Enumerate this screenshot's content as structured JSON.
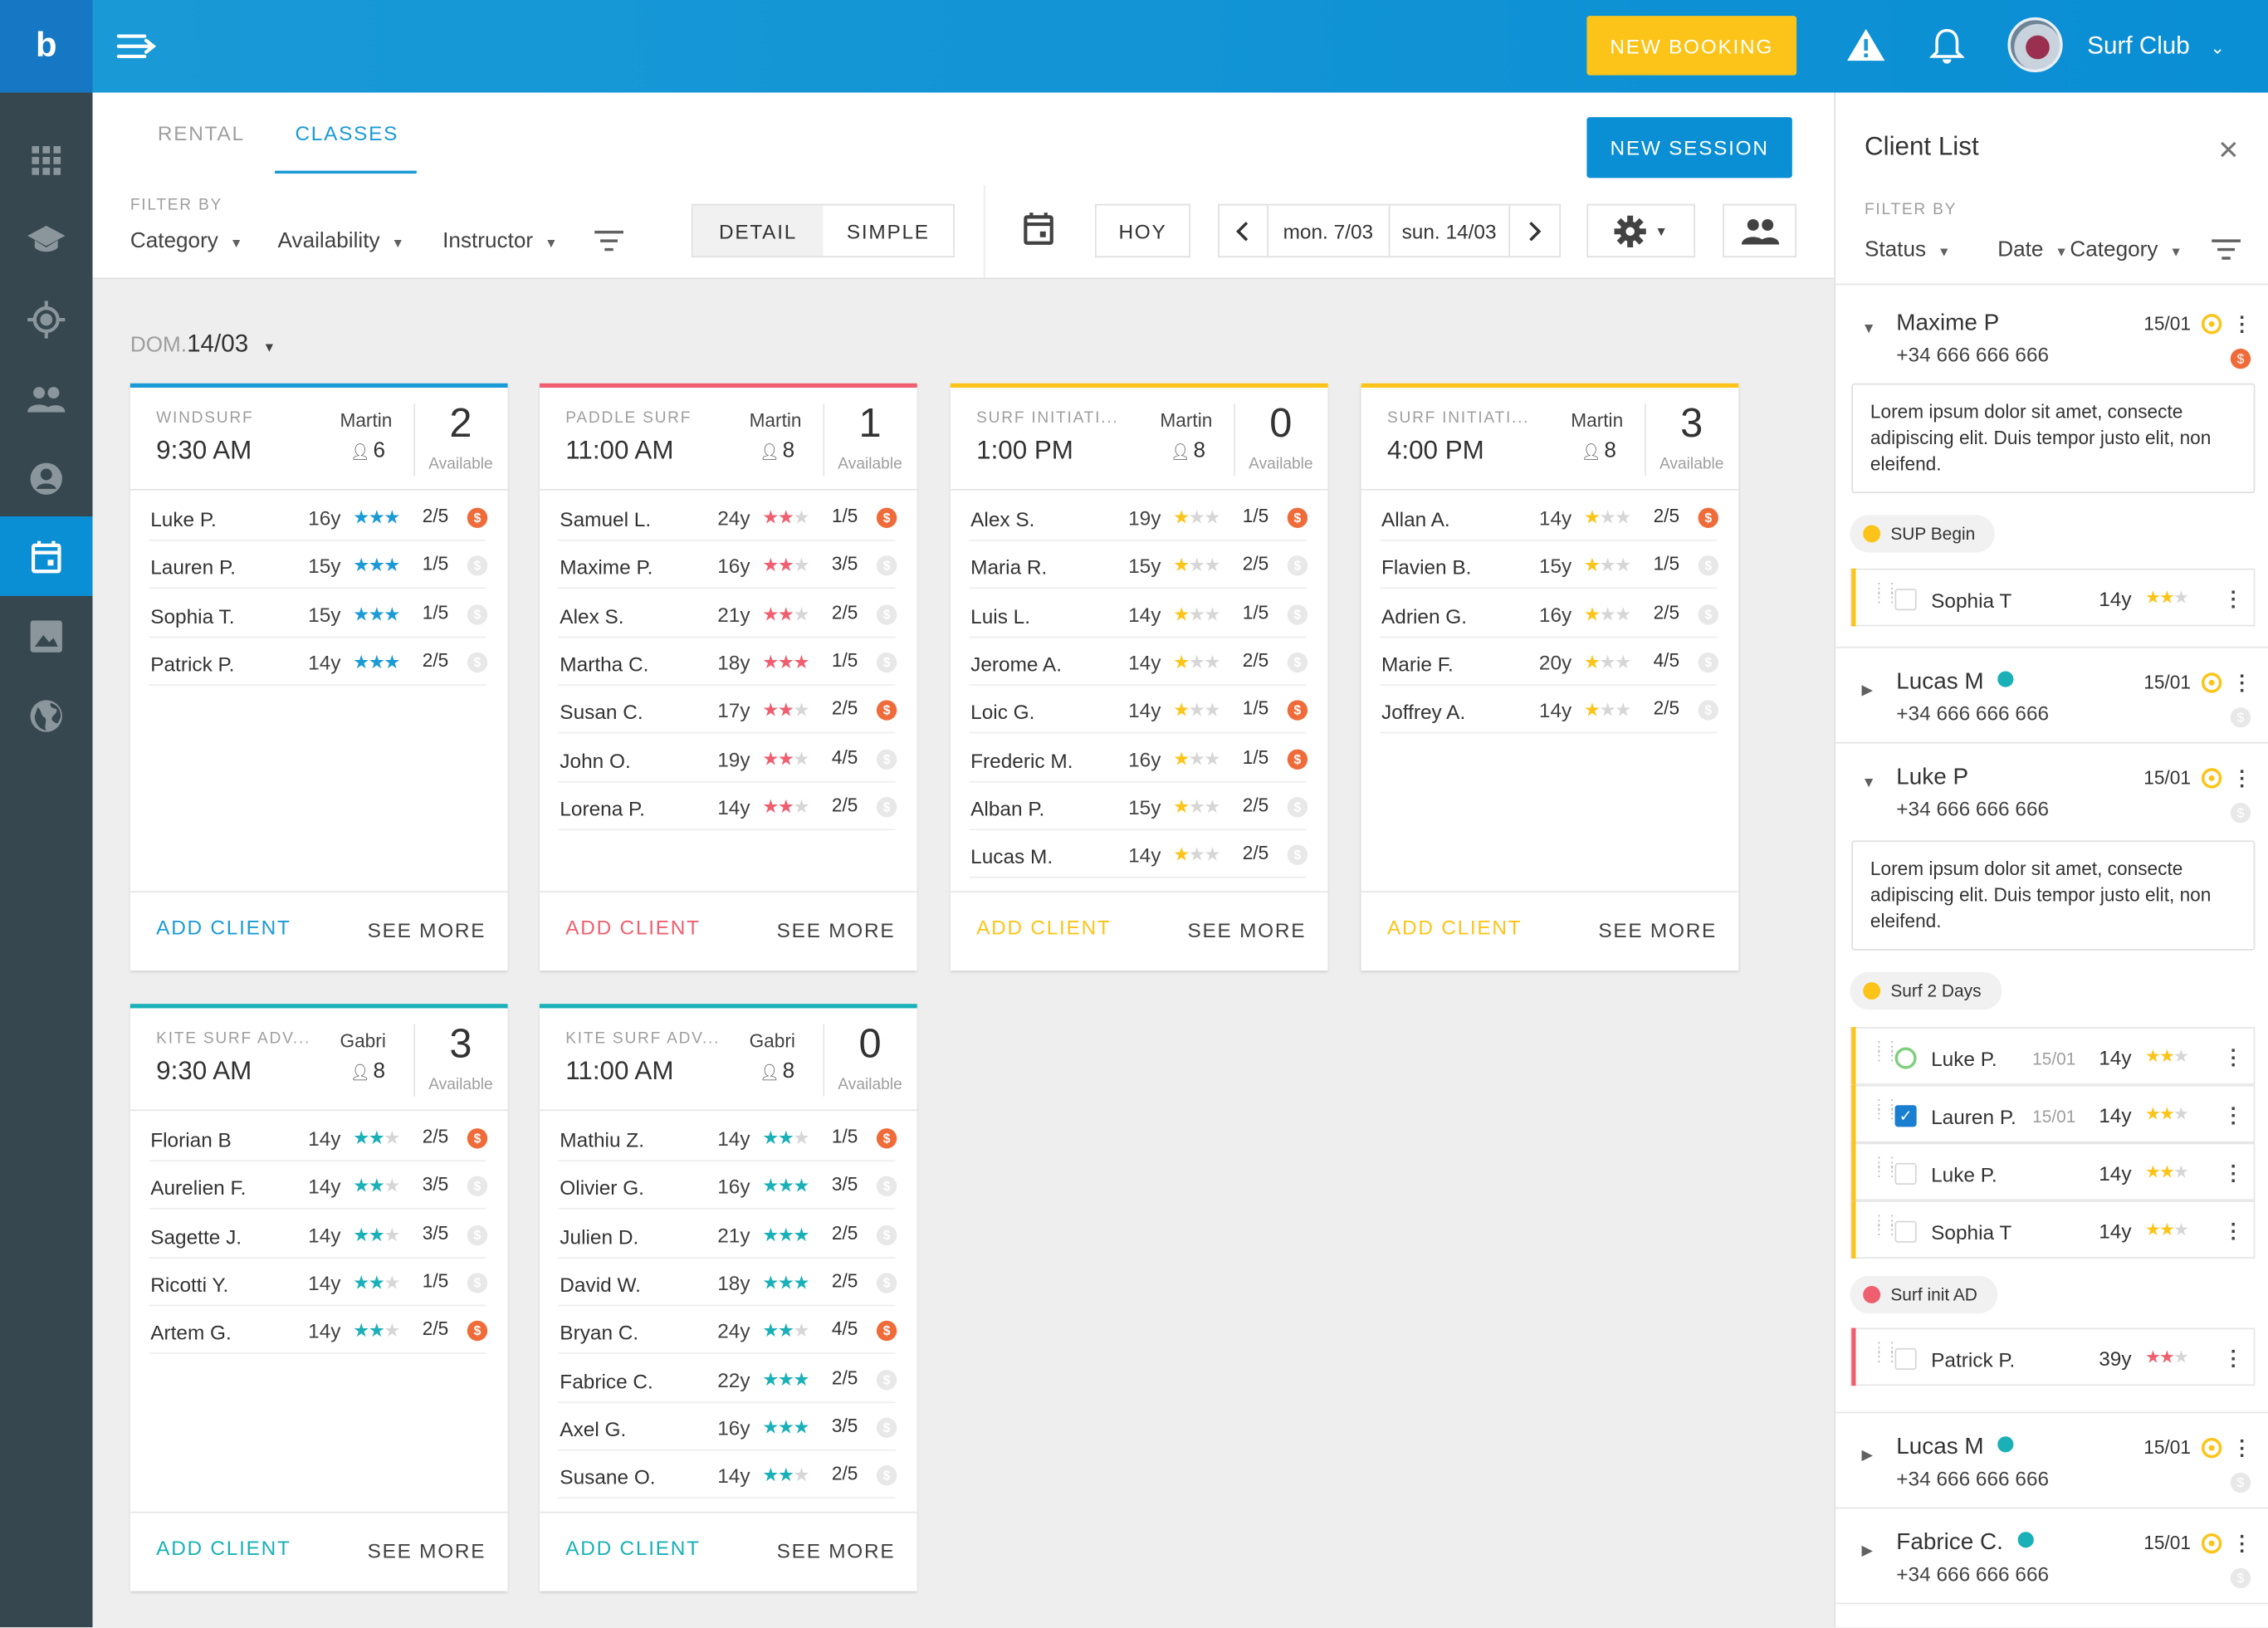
{
  "app": {
    "logo": "b",
    "club": "Surf Club",
    "new_booking": "NEW BOOKING"
  },
  "icons": {
    "menu": "menu-arrow-icon",
    "warning": "warning-icon",
    "bell": "bell-icon",
    "gear": "gear-icon",
    "calendar": "calendar-icon",
    "users": "users-icon",
    "filter": "filter-icon"
  },
  "colors": {
    "primary": "#0a8ed4",
    "accent": "#fcc419",
    "windsurf": "#1a9ad6",
    "paddle": "#ef5f6f",
    "surf": "#fcc419",
    "kite": "#1ab0b8",
    "pay": "#ef6c3a"
  },
  "tabs": [
    {
      "label": "RENTAL"
    },
    {
      "label": "CLASSES"
    }
  ],
  "new_session": "NEW SESSION",
  "filters": {
    "label": "FILTER BY",
    "items": [
      "Category",
      "Availability",
      "Instructor"
    ]
  },
  "view": {
    "detail": "DETAIL",
    "simple": "SIMPLE"
  },
  "today": "HOY",
  "range": {
    "from": "mon. 7/03",
    "to": "sun. 14/03"
  },
  "day": {
    "prefix": "DOM.",
    "date": "14/03"
  },
  "cards": [
    {
      "type": "WINDSURF",
      "time": "9:30 AM",
      "instructor": "Martin",
      "capacity": "6",
      "available": "2",
      "available_label": "Available",
      "color": "#1a9ad6",
      "star_color": "#1a9ad6",
      "rows": [
        [
          "Luke P.",
          "16y",
          3,
          "2/5",
          true
        ],
        [
          "Lauren P.",
          "15y",
          3,
          "1/5",
          false
        ],
        [
          "Sophia T.",
          "15y",
          3,
          "1/5",
          false
        ],
        [
          "Patrick P.",
          "14y",
          3,
          "2/5",
          false
        ]
      ],
      "add": "ADD CLIENT",
      "more": "SEE MORE"
    },
    {
      "type": "PADDLE SURF",
      "time": "11:00 AM",
      "instructor": "Martin",
      "capacity": "8",
      "available": "1",
      "available_label": "Available",
      "color": "#ef5f6f",
      "star_color": "#ef5f6f",
      "rows": [
        [
          "Samuel L.",
          "24y",
          2,
          "1/5",
          true
        ],
        [
          "Maxime P.",
          "16y",
          2,
          "3/5",
          false
        ],
        [
          "Alex S.",
          "21y",
          2,
          "2/5",
          false
        ],
        [
          "Martha C.",
          "18y",
          3,
          "1/5",
          false
        ],
        [
          "Susan C.",
          "17y",
          2,
          "2/5",
          true
        ],
        [
          "John O.",
          "19y",
          2,
          "4/5",
          false
        ],
        [
          "Lorena P.",
          "14y",
          2,
          "2/5",
          false
        ]
      ],
      "add": "ADD CLIENT",
      "more": "SEE MORE"
    },
    {
      "type": "SURF INITIATI...",
      "time": "1:00 PM",
      "instructor": "Martin",
      "capacity": "8",
      "available": "0",
      "available_label": "Available",
      "color": "#fcc419",
      "star_color": "#fcc419",
      "rows": [
        [
          "Alex S.",
          "19y",
          1,
          "1/5",
          true
        ],
        [
          "Maria R.",
          "15y",
          1,
          "2/5",
          false
        ],
        [
          "Luis L.",
          "14y",
          1,
          "1/5",
          false
        ],
        [
          "Jerome A.",
          "14y",
          1,
          "2/5",
          false
        ],
        [
          "Loic G.",
          "14y",
          1,
          "1/5",
          true
        ],
        [
          "Frederic M.",
          "16y",
          1,
          "1/5",
          true
        ],
        [
          "Alban P.",
          "15y",
          1,
          "2/5",
          false
        ],
        [
          "Lucas M.",
          "14y",
          1,
          "2/5",
          false
        ]
      ],
      "add": "ADD CLIENT",
      "more": "SEE MORE"
    },
    {
      "type": "SURF INITIATI...",
      "time": "4:00 PM",
      "instructor": "Martin",
      "capacity": "8",
      "available": "3",
      "available_label": "Available",
      "color": "#fcc419",
      "star_color": "#fcc419",
      "rows": [
        [
          "Allan A.",
          "14y",
          1,
          "2/5",
          true
        ],
        [
          "Flavien B.",
          "15y",
          1,
          "1/5",
          false
        ],
        [
          "Adrien G.",
          "16y",
          1,
          "2/5",
          false
        ],
        [
          "Marie F.",
          "20y",
          1,
          "4/5",
          false
        ],
        [
          "Joffrey A.",
          "14y",
          1,
          "2/5",
          false
        ]
      ],
      "add": "ADD CLIENT",
      "more": "SEE MORE"
    },
    {
      "type": "KITE SURF ADV...",
      "time": "9:30 AM",
      "instructor": "Gabri",
      "capacity": "8",
      "available": "3",
      "available_label": "Available",
      "color": "#1ab0b8",
      "star_color": "#1ab0b8",
      "rows": [
        [
          "Florian B",
          "14y",
          2,
          "2/5",
          true
        ],
        [
          "Aurelien F.",
          "14y",
          2,
          "3/5",
          false
        ],
        [
          "Sagette J.",
          "14y",
          2,
          "3/5",
          false
        ],
        [
          "Ricotti Y.",
          "14y",
          2,
          "1/5",
          false
        ],
        [
          "Artem G.",
          "14y",
          2,
          "2/5",
          true
        ]
      ],
      "add": "ADD CLIENT",
      "more": "SEE MORE"
    },
    {
      "type": "KITE SURF ADV...",
      "time": "11:00 AM",
      "instructor": "Gabri",
      "capacity": "8",
      "available": "0",
      "available_label": "Available",
      "color": "#1ab0b8",
      "star_color": "#1ab0b8",
      "rows": [
        [
          "Mathiu Z.",
          "14y",
          2,
          "1/5",
          true
        ],
        [
          "Olivier G.",
          "16y",
          3,
          "3/5",
          false
        ],
        [
          "Julien D.",
          "21y",
          3,
          "2/5",
          false
        ],
        [
          "David W.",
          "18y",
          3,
          "2/5",
          false
        ],
        [
          "Bryan C.",
          "24y",
          2,
          "4/5",
          true
        ],
        [
          "Fabrice C.",
          "22y",
          3,
          "2/5",
          false
        ],
        [
          "Axel G.",
          "16y",
          3,
          "3/5",
          false
        ],
        [
          "Susane O.",
          "14y",
          2,
          "2/5",
          false
        ]
      ],
      "add": "ADD CLIENT",
      "more": "SEE MORE"
    }
  ],
  "panel": {
    "title": "Client List",
    "filter_label": "FILTER BY",
    "filters": [
      "Status",
      "Date",
      "Category"
    ],
    "clients": [
      {
        "name": "Maxime P",
        "phone": "+34 666 666 666",
        "date": "15/01",
        "note": "Lorem ipsum dolor sit amet, consecte adipiscing elit. Duis tempor justo elit, non eleifend."
      },
      {
        "name": "Lucas M",
        "phone": "+34 666 666 666",
        "date": "15/01"
      },
      {
        "name": "Luke P",
        "phone": "+34 666 666 666",
        "date": "15/01",
        "note": "Lorem ipsum dolor sit amet, consecte adipiscing elit. Duis tempor justo elit, non eleifend."
      },
      {
        "name": "Lucas M",
        "phone": "+34 666 666 666",
        "date": "15/01"
      },
      {
        "name": "Fabrice C.",
        "phone": "+34 666 666 666",
        "date": "15/01"
      }
    ],
    "groups": [
      {
        "label": "SUP Begin",
        "color": "#fcc419",
        "items": [
          {
            "name": "Sophia T",
            "date": "",
            "age": "14y",
            "stars": 2
          }
        ]
      },
      {
        "label": "Surf 2 Days",
        "color": "#fcc419",
        "items": [
          {
            "name": "Luke P.",
            "date": "15/01",
            "age": "14y",
            "stars": 2
          },
          {
            "name": "Lauren P.",
            "date": "15/01",
            "age": "14y",
            "stars": 2
          },
          {
            "name": "Luke P.",
            "date": "",
            "age": "14y",
            "stars": 2
          },
          {
            "name": "Sophia T",
            "date": "",
            "age": "14y",
            "stars": 2
          }
        ]
      },
      {
        "label": "Surf init AD",
        "color": "#ef5f6f",
        "items": [
          {
            "name": "Patrick P.",
            "date": "",
            "age": "39y",
            "stars": 2
          }
        ]
      }
    ]
  }
}
